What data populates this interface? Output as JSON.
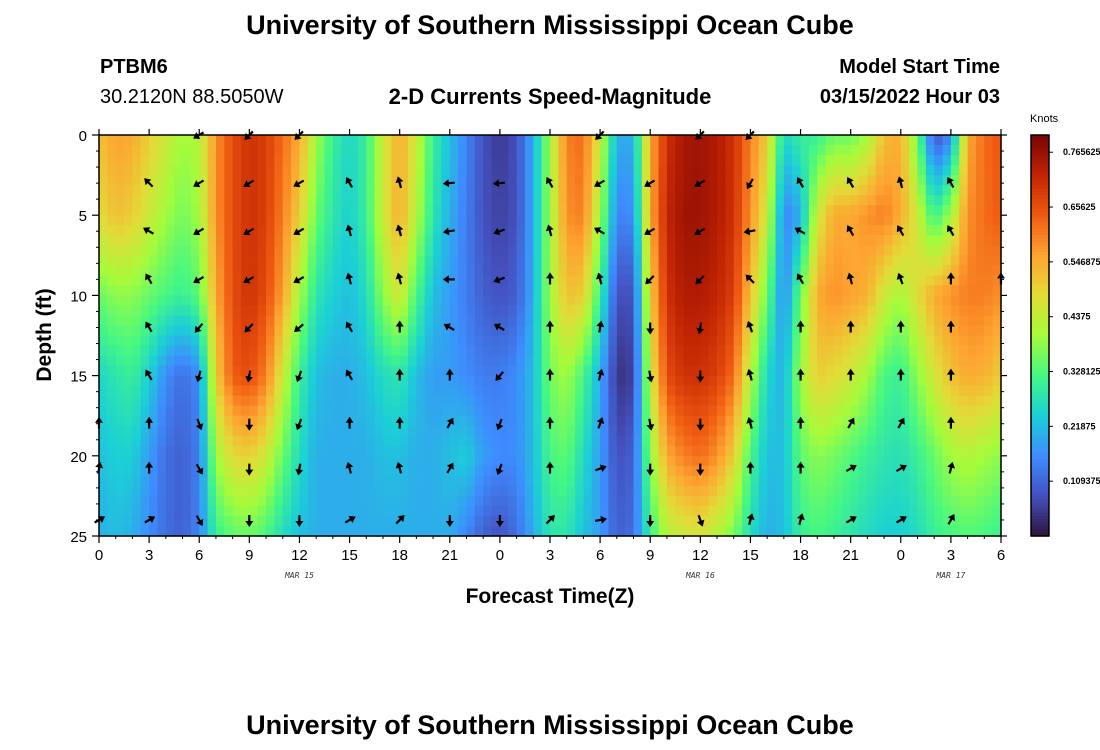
{
  "header": {
    "title": "University of Southern Mississippi Ocean Cube",
    "station": "PTBM6",
    "coords": "30.2120N  88.5050W",
    "plot_title": "2-D Currents Speed-Magnitude",
    "model_start_label": "Model Start Time",
    "model_start_value": "03/15/2022 Hour 03"
  },
  "footer": {
    "title": "University of Southern Mississippi Ocean Cube"
  },
  "chart_data": {
    "type": "heatmap",
    "title": "2-D Currents Speed-Magnitude",
    "xlabel": "Forecast Time(Z)",
    "ylabel": "Depth (ft)",
    "xlim": [
      0,
      54
    ],
    "ylim": [
      0,
      25
    ],
    "x_ticks": [
      0,
      3,
      6,
      9,
      12,
      15,
      18,
      21,
      24,
      27,
      30,
      33,
      36,
      39,
      42,
      45,
      48,
      51,
      54
    ],
    "x_tick_labels": [
      "0",
      "3",
      "6",
      "9",
      "12",
      "15",
      "18",
      "21",
      "0",
      "3",
      "6",
      "9",
      "12",
      "15",
      "18",
      "21",
      "0",
      "3",
      "6"
    ],
    "y_ticks": [
      0,
      5,
      10,
      15,
      20,
      25
    ],
    "y_tick_labels": [
      "0",
      "5",
      "10",
      "15",
      "20",
      "25"
    ],
    "date_labels": [
      {
        "hour": 12,
        "text": "MAR 15"
      },
      {
        "hour": 36,
        "text": "MAR 16"
      },
      {
        "hour": 51,
        "text": "MAR 17"
      }
    ],
    "colorbar": {
      "label": "Knots",
      "min": 0,
      "max": 0.8,
      "ticks": [
        0.765625,
        0.65625,
        0.546875,
        0.4375,
        0.328125,
        0.21875,
        0.109375
      ],
      "tick_labels": [
        "0.765625",
        "0.65625",
        "0.546875",
        "0.4375",
        "0.328125",
        "0.21875",
        "0.109375"
      ]
    },
    "speed_knots_by_hour_and_depth": {
      "depths_ft": [
        0,
        5,
        10,
        15,
        20,
        25
      ],
      "hours": [
        0,
        1,
        2,
        3,
        4,
        5,
        6,
        7,
        8,
        9,
        10,
        11,
        12,
        13,
        14,
        15,
        16,
        17,
        18,
        19,
        20,
        21,
        22,
        23,
        24,
        25,
        26,
        27,
        28,
        29,
        30,
        31,
        32,
        33,
        34,
        35,
        36,
        37,
        38,
        39,
        40,
        41,
        42,
        43,
        44,
        45,
        46,
        47,
        48,
        49,
        50,
        51,
        52,
        53,
        54
      ],
      "d0": [
        0.52,
        0.56,
        0.55,
        0.5,
        0.45,
        0.4,
        0.42,
        0.58,
        0.66,
        0.7,
        0.68,
        0.62,
        0.55,
        0.4,
        0.3,
        0.25,
        0.3,
        0.45,
        0.55,
        0.45,
        0.3,
        0.22,
        0.15,
        0.08,
        0.05,
        0.08,
        0.2,
        0.4,
        0.6,
        0.62,
        0.45,
        0.2,
        0.2,
        0.55,
        0.7,
        0.75,
        0.76,
        0.74,
        0.7,
        0.6,
        0.5,
        0.25,
        0.3,
        0.3,
        0.35,
        0.35,
        0.4,
        0.52,
        0.55,
        0.35,
        0.08,
        0.15,
        0.55,
        0.62,
        0.65
      ],
      "d5": [
        0.48,
        0.52,
        0.5,
        0.45,
        0.4,
        0.36,
        0.4,
        0.58,
        0.66,
        0.7,
        0.68,
        0.6,
        0.5,
        0.35,
        0.28,
        0.24,
        0.3,
        0.45,
        0.55,
        0.42,
        0.28,
        0.2,
        0.14,
        0.08,
        0.06,
        0.08,
        0.2,
        0.4,
        0.58,
        0.6,
        0.4,
        0.15,
        0.16,
        0.55,
        0.72,
        0.76,
        0.76,
        0.74,
        0.7,
        0.58,
        0.45,
        0.15,
        0.2,
        0.45,
        0.55,
        0.55,
        0.58,
        0.6,
        0.55,
        0.45,
        0.3,
        0.4,
        0.58,
        0.62,
        0.64
      ],
      "d10": [
        0.35,
        0.38,
        0.38,
        0.35,
        0.32,
        0.3,
        0.34,
        0.55,
        0.66,
        0.7,
        0.66,
        0.56,
        0.4,
        0.28,
        0.24,
        0.22,
        0.26,
        0.38,
        0.46,
        0.32,
        0.22,
        0.18,
        0.14,
        0.1,
        0.08,
        0.1,
        0.2,
        0.4,
        0.52,
        0.5,
        0.3,
        0.08,
        0.08,
        0.5,
        0.7,
        0.74,
        0.74,
        0.72,
        0.68,
        0.52,
        0.35,
        0.15,
        0.35,
        0.55,
        0.58,
        0.56,
        0.54,
        0.45,
        0.4,
        0.48,
        0.55,
        0.58,
        0.6,
        0.6,
        0.58
      ],
      "d15": [
        0.25,
        0.28,
        0.3,
        0.24,
        0.16,
        0.12,
        0.16,
        0.5,
        0.64,
        0.66,
        0.6,
        0.45,
        0.3,
        0.22,
        0.2,
        0.2,
        0.22,
        0.26,
        0.28,
        0.22,
        0.18,
        0.18,
        0.16,
        0.14,
        0.14,
        0.16,
        0.22,
        0.36,
        0.4,
        0.32,
        0.2,
        0.04,
        0.06,
        0.45,
        0.66,
        0.7,
        0.7,
        0.68,
        0.62,
        0.42,
        0.25,
        0.2,
        0.4,
        0.5,
        0.48,
        0.45,
        0.4,
        0.32,
        0.3,
        0.38,
        0.46,
        0.52,
        0.55,
        0.54,
        0.5
      ],
      "d20": [
        0.22,
        0.24,
        0.24,
        0.18,
        0.12,
        0.1,
        0.14,
        0.4,
        0.48,
        0.5,
        0.45,
        0.35,
        0.26,
        0.2,
        0.2,
        0.2,
        0.2,
        0.22,
        0.22,
        0.2,
        0.2,
        0.22,
        0.24,
        0.18,
        0.16,
        0.16,
        0.22,
        0.32,
        0.34,
        0.26,
        0.18,
        0.08,
        0.1,
        0.38,
        0.55,
        0.6,
        0.62,
        0.58,
        0.5,
        0.32,
        0.22,
        0.22,
        0.34,
        0.38,
        0.36,
        0.33,
        0.3,
        0.28,
        0.27,
        0.3,
        0.35,
        0.4,
        0.42,
        0.4,
        0.38
      ],
      "d25": [
        0.2,
        0.22,
        0.2,
        0.16,
        0.12,
        0.1,
        0.15,
        0.3,
        0.34,
        0.35,
        0.32,
        0.26,
        0.22,
        0.2,
        0.2,
        0.2,
        0.2,
        0.2,
        0.2,
        0.2,
        0.2,
        0.2,
        0.15,
        0.1,
        0.08,
        0.12,
        0.2,
        0.28,
        0.28,
        0.22,
        0.18,
        0.1,
        0.12,
        0.3,
        0.42,
        0.45,
        0.46,
        0.42,
        0.36,
        0.26,
        0.2,
        0.22,
        0.3,
        0.32,
        0.3,
        0.28,
        0.26,
        0.24,
        0.24,
        0.26,
        0.3,
        0.32,
        0.33,
        0.32,
        0.3
      ]
    },
    "vector_directions_deg": {
      "note": "current direction arrows (degrees clockwise from up), sampled every 3 hours at listed depths",
      "arrow_hours": [
        0,
        3,
        6,
        9,
        12,
        15,
        18,
        21,
        24,
        27,
        30,
        33,
        36,
        39,
        42,
        45,
        48,
        51,
        54
      ],
      "arrow_depths_ft": [
        0,
        3,
        6,
        9,
        12,
        15,
        18,
        20.8,
        24
      ],
      "rows": [
        [
          null,
          null,
          240,
          225,
          225,
          null,
          null,
          null,
          null,
          null,
          225,
          null,
          225,
          225,
          null,
          null,
          null,
          null,
          null
        ],
        [
          null,
          315,
          240,
          240,
          240,
          330,
          345,
          265,
          265,
          330,
          240,
          240,
          240,
          210,
          330,
          330,
          345,
          330,
          null
        ],
        [
          null,
          300,
          240,
          240,
          240,
          345,
          345,
          260,
          250,
          345,
          300,
          240,
          240,
          260,
          300,
          330,
          330,
          330,
          null
        ],
        [
          null,
          330,
          240,
          240,
          240,
          345,
          345,
          270,
          250,
          0,
          345,
          225,
          225,
          315,
          330,
          345,
          340,
          0,
          0
        ],
        [
          null,
          330,
          220,
          225,
          230,
          330,
          0,
          300,
          300,
          0,
          10,
          180,
          190,
          340,
          0,
          0,
          0,
          0,
          null
        ],
        [
          null,
          330,
          195,
          190,
          200,
          330,
          0,
          0,
          220,
          0,
          15,
          170,
          180,
          345,
          0,
          0,
          0,
          0,
          null
        ],
        [
          0,
          0,
          160,
          180,
          200,
          0,
          0,
          30,
          200,
          0,
          20,
          170,
          180,
          345,
          0,
          30,
          30,
          0,
          null
        ],
        [
          10,
          0,
          150,
          180,
          190,
          345,
          345,
          30,
          200,
          0,
          70,
          180,
          180,
          0,
          0,
          60,
          60,
          15,
          null
        ],
        [
          60,
          60,
          150,
          180,
          180,
          60,
          45,
          180,
          180,
          45,
          80,
          180,
          160,
          15,
          15,
          60,
          60,
          30,
          null
        ]
      ]
    }
  }
}
